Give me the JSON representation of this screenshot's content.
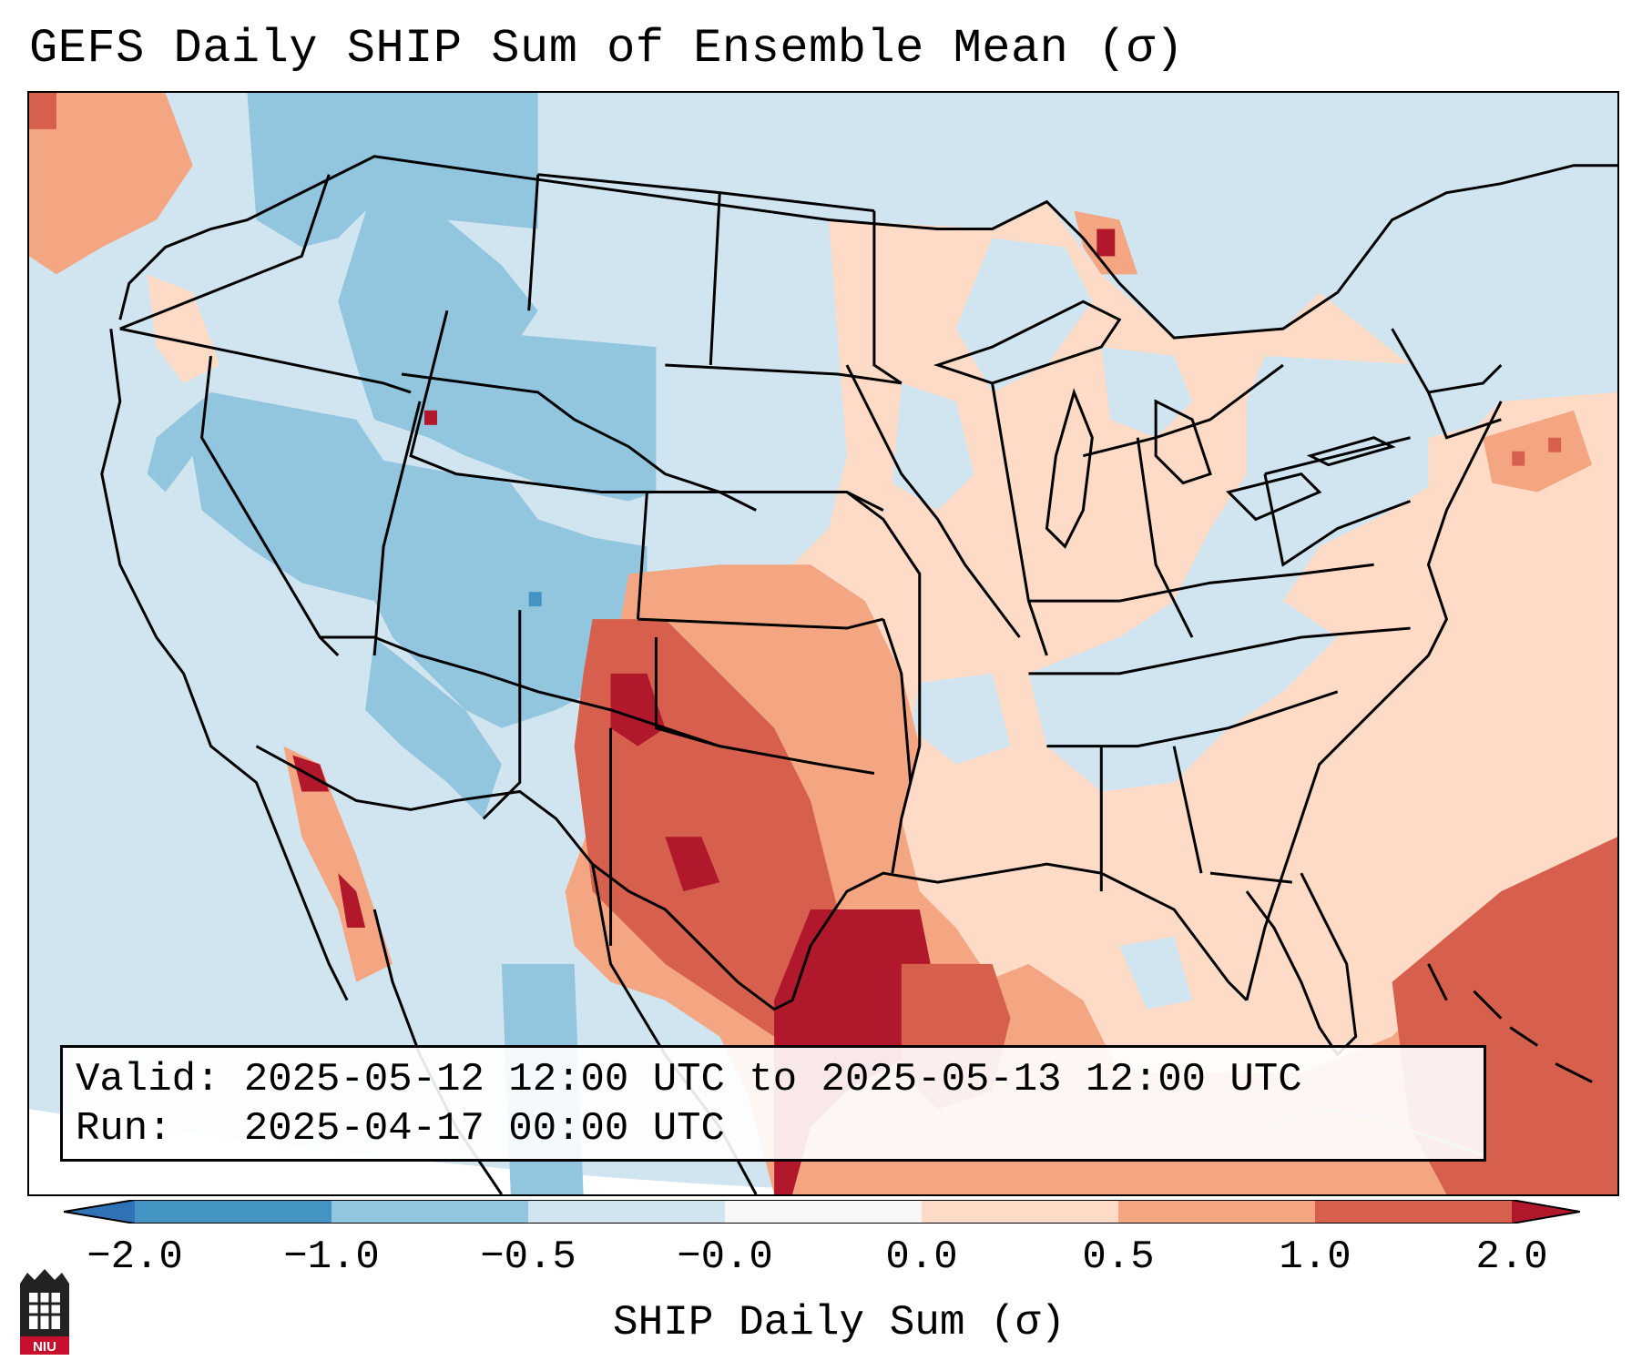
{
  "header": {
    "title": "GEFS Daily SHIP Sum of Ensemble Mean (σ)"
  },
  "info": {
    "valid_label": "Valid:",
    "valid_value": "2025-05-12 12:00 UTC to 2025-05-13 12:00 UTC",
    "run_label": "Run:",
    "run_value": "2025-04-17 00:00 UTC"
  },
  "colorbar": {
    "label": "SHIP Daily Sum (σ)",
    "ticks": [
      "−2.0",
      "−1.0",
      "−0.5",
      "−0.0",
      "0.0",
      "0.5",
      "1.0",
      "2.0"
    ],
    "bins": [
      {
        "range": "< -2.0",
        "color": "#2f72b6"
      },
      {
        "range": "-2.0 to -1.0",
        "color": "#4393c3"
      },
      {
        "range": "-1.0 to -0.5",
        "color": "#92c5de"
      },
      {
        "range": "-0.5 to -0.0",
        "color": "#d1e5f0"
      },
      {
        "range": "-0.0 to 0.0",
        "color": "#f7f7f7"
      },
      {
        "range": "0.0 to 0.5",
        "color": "#fddbc7"
      },
      {
        "range": "0.5 to 1.0",
        "color": "#f4a582"
      },
      {
        "range": "1.0 to 2.0",
        "color": "#d6604d"
      },
      {
        "range": "> 2.0",
        "color": "#b2182b"
      }
    ]
  },
  "logo": {
    "name": "niu-logo",
    "text": "NIU"
  },
  "colors": {
    "land_outline": "#000000",
    "background_outside": "#ffffff"
  }
}
